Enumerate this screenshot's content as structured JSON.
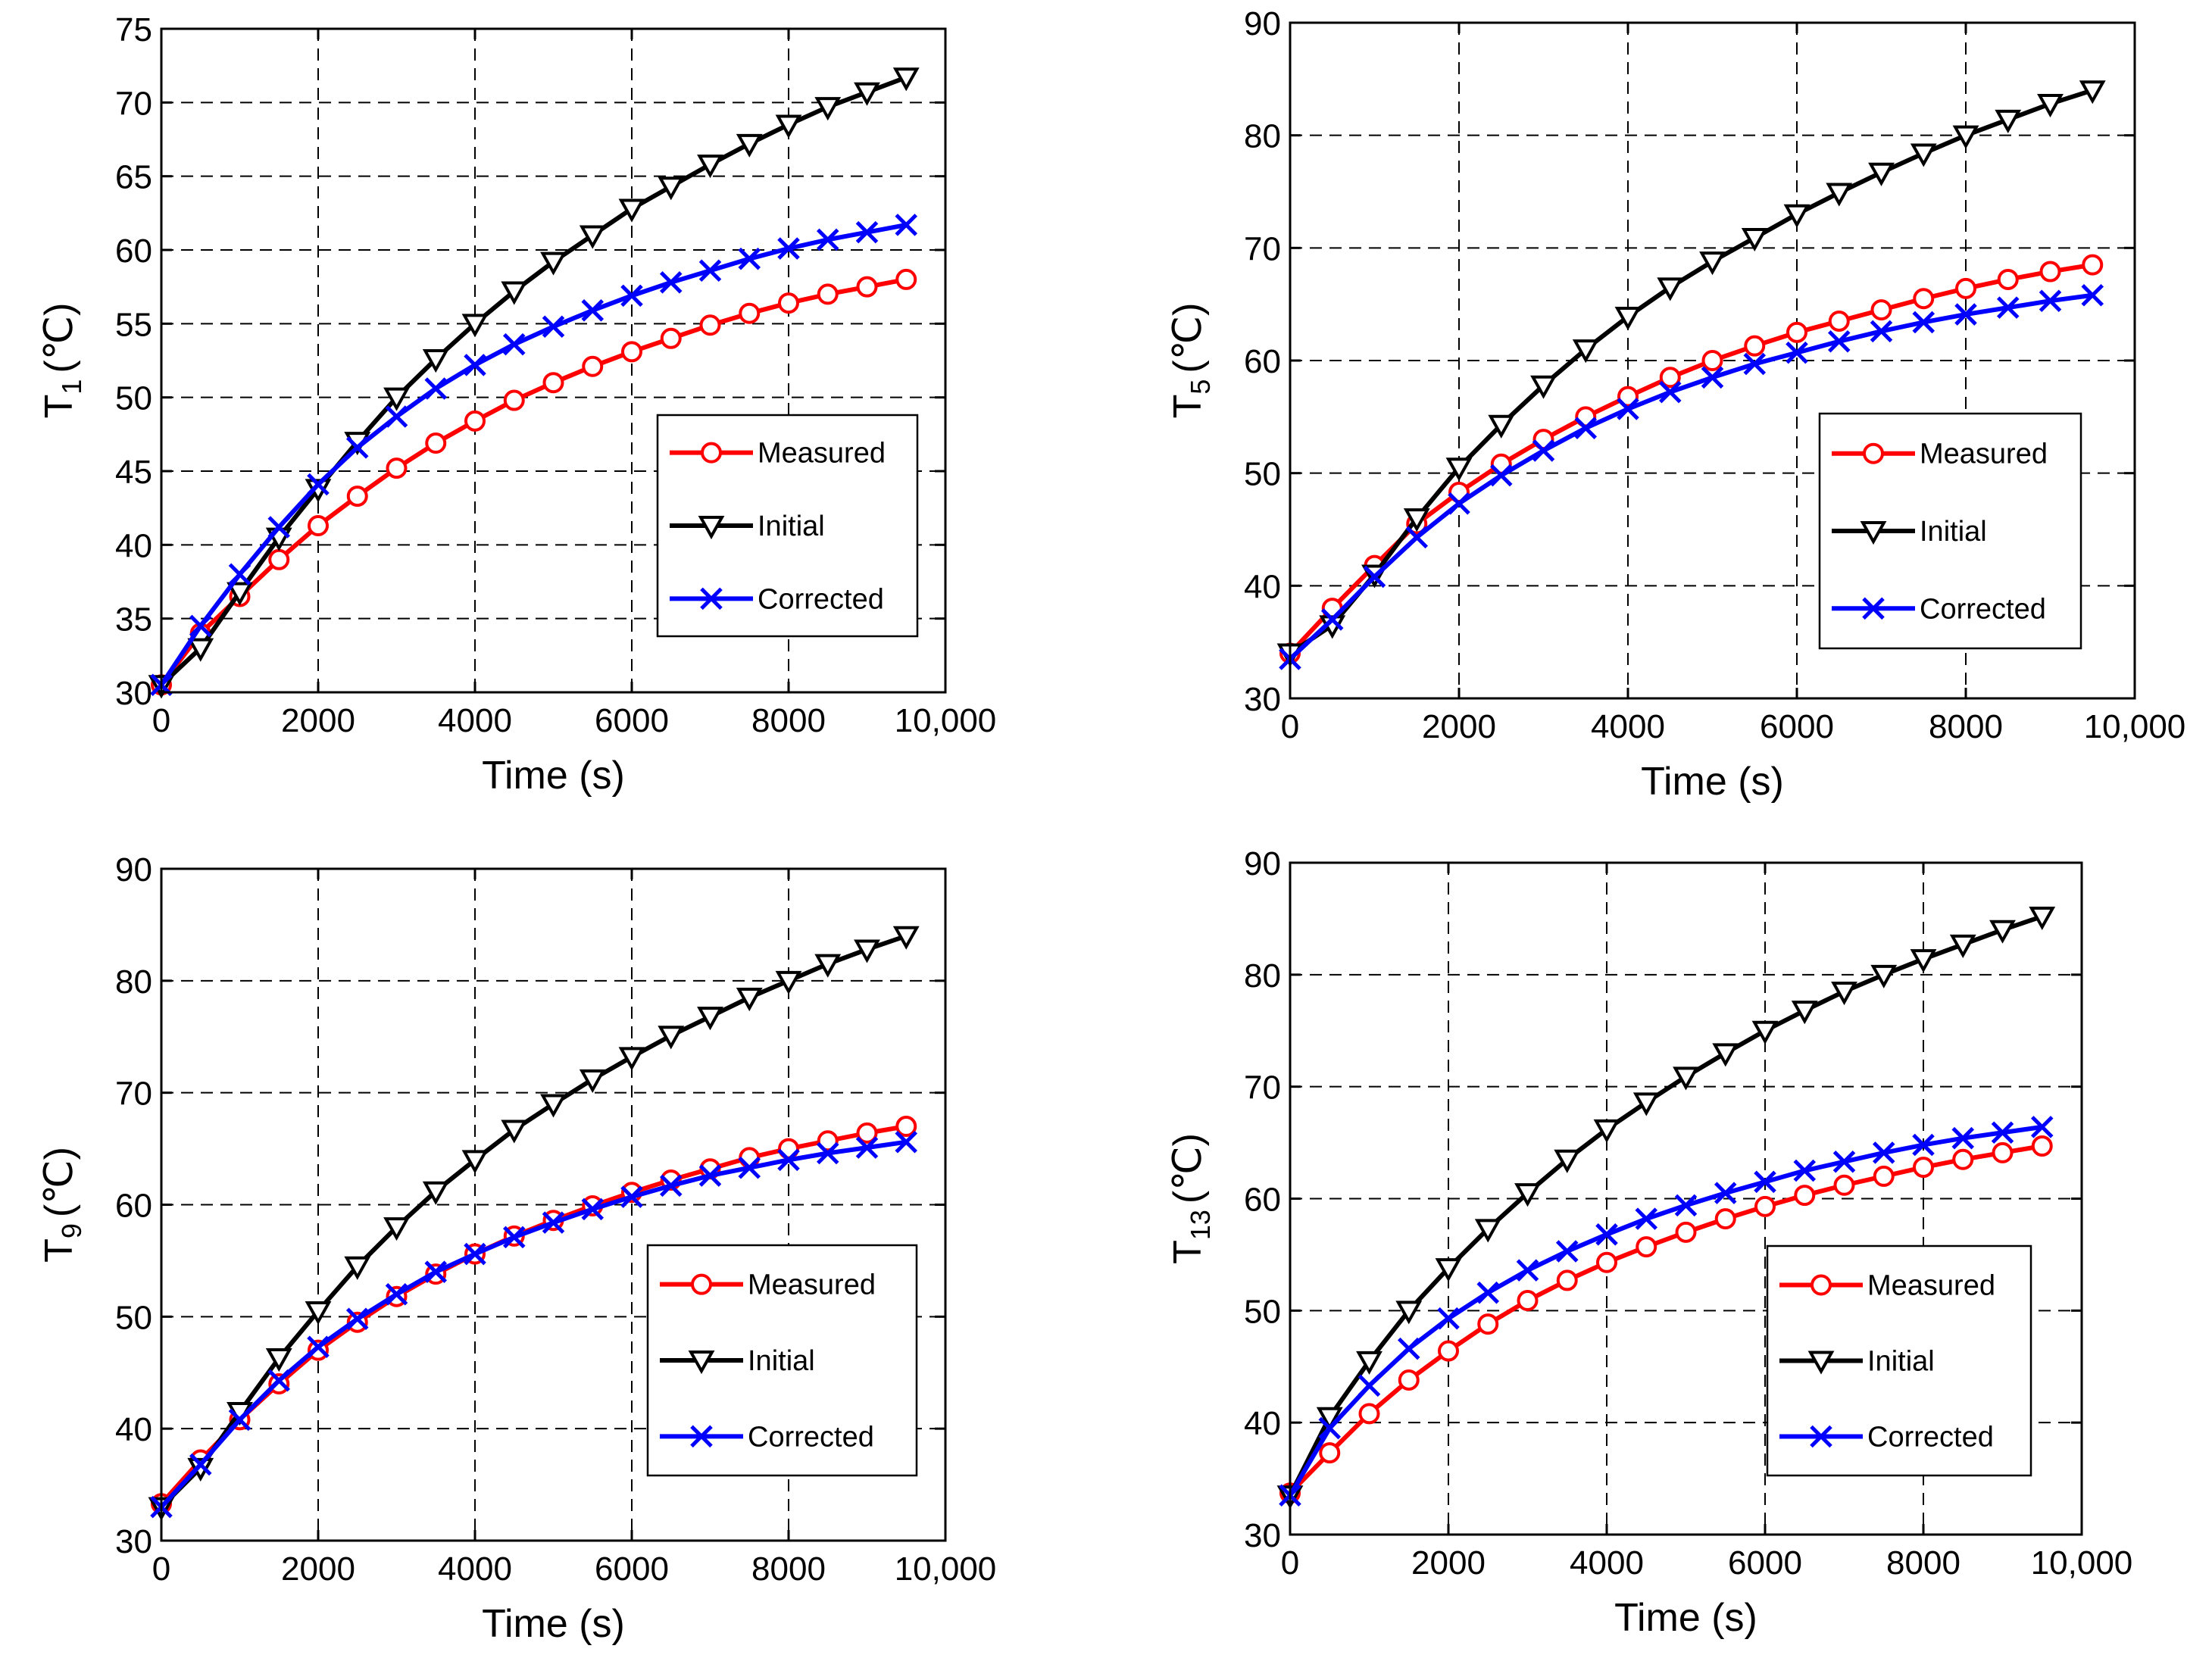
{
  "chart_data": [
    {
      "type": "line",
      "id": "T1",
      "ylabel_main": "T",
      "ylabel_sub": "1",
      "ylabel_unit": "(℃)",
      "xlabel": "Time (s)",
      "xlim": [
        0,
        10000
      ],
      "ylim": [
        30,
        75
      ],
      "xticks": [
        0,
        2000,
        4000,
        6000,
        8000,
        10000
      ],
      "xtick_labels": [
        "0",
        "2000",
        "4000",
        "6000",
        "8000",
        "10,000"
      ],
      "yticks": [
        30,
        35,
        40,
        45,
        50,
        55,
        60,
        65,
        70,
        75
      ],
      "ytick_labels": [
        "30",
        "35",
        "40",
        "45",
        "50",
        "55",
        "60",
        "65",
        "70",
        "75"
      ],
      "legend_position": "center-right",
      "x": [
        0,
        500,
        1000,
        1500,
        2000,
        2500,
        3000,
        3500,
        4000,
        4500,
        5000,
        5500,
        6000,
        6500,
        7000,
        7500,
        8000,
        8500,
        9000,
        9500
      ],
      "series": [
        {
          "name": "Measured",
          "color": "#ff0000",
          "marker": "circle",
          "values": [
            30.5,
            34.0,
            36.5,
            39.0,
            41.3,
            43.3,
            45.2,
            46.9,
            48.4,
            49.8,
            51.0,
            52.1,
            53.1,
            54.0,
            54.9,
            55.7,
            56.4,
            57.0,
            57.5,
            58.0
          ]
        },
        {
          "name": "Initial",
          "color": "#000000",
          "marker": "triangle-down",
          "values": [
            30.5,
            33.0,
            36.8,
            40.5,
            43.8,
            47.0,
            50.0,
            52.6,
            55.0,
            57.2,
            59.2,
            61.0,
            62.8,
            64.3,
            65.8,
            67.2,
            68.5,
            69.7,
            70.7,
            71.7
          ]
        },
        {
          "name": "Corrected",
          "color": "#0000ff",
          "marker": "x",
          "values": [
            30.5,
            34.5,
            38.0,
            41.2,
            44.1,
            46.6,
            48.7,
            50.6,
            52.2,
            53.6,
            54.8,
            55.9,
            56.9,
            57.8,
            58.6,
            59.4,
            60.1,
            60.7,
            61.2,
            61.7
          ]
        }
      ]
    },
    {
      "type": "line",
      "id": "T5",
      "ylabel_main": "T",
      "ylabel_sub": "5",
      "ylabel_unit": "(℃)",
      "xlabel": "Time (s)",
      "xlim": [
        0,
        10000
      ],
      "ylim": [
        30,
        90
      ],
      "xticks": [
        0,
        2000,
        4000,
        6000,
        8000,
        10000
      ],
      "xtick_labels": [
        "0",
        "2000",
        "4000",
        "6000",
        "8000",
        "10,000"
      ],
      "yticks": [
        30,
        40,
        50,
        60,
        70,
        80,
        90
      ],
      "ytick_labels": [
        "30",
        "40",
        "50",
        "60",
        "70",
        "80",
        "90"
      ],
      "legend_position": "center-right",
      "x": [
        0,
        500,
        1000,
        1500,
        2000,
        2500,
        3000,
        3500,
        4000,
        4500,
        5000,
        5500,
        6000,
        6500,
        7000,
        7500,
        8000,
        8500,
        9000,
        9500
      ],
      "series": [
        {
          "name": "Measured",
          "color": "#ff0000",
          "marker": "circle",
          "values": [
            34.0,
            38.0,
            41.8,
            45.5,
            48.3,
            50.8,
            53.0,
            55.0,
            56.8,
            58.5,
            60.0,
            61.3,
            62.5,
            63.5,
            64.5,
            65.5,
            66.4,
            67.2,
            67.9,
            68.5
          ]
        },
        {
          "name": "Initial",
          "color": "#000000",
          "marker": "triangle-down",
          "values": [
            34.0,
            36.5,
            41.0,
            46.0,
            50.5,
            54.3,
            57.8,
            61.0,
            63.9,
            66.5,
            68.8,
            70.9,
            73.0,
            74.9,
            76.7,
            78.4,
            80.0,
            81.4,
            82.8,
            84.0
          ]
        },
        {
          "name": "Corrected",
          "color": "#0000ff",
          "marker": "x",
          "values": [
            33.5,
            37.0,
            40.8,
            44.3,
            47.3,
            49.8,
            52.0,
            54.0,
            55.7,
            57.2,
            58.5,
            59.7,
            60.7,
            61.7,
            62.6,
            63.4,
            64.1,
            64.7,
            65.3,
            65.8
          ]
        }
      ]
    },
    {
      "type": "line",
      "id": "T9",
      "ylabel_main": "T",
      "ylabel_sub": "9",
      "ylabel_unit": "(℃)",
      "xlabel": "Time (s)",
      "xlim": [
        0,
        10000
      ],
      "ylim": [
        30,
        90
      ],
      "xticks": [
        0,
        2000,
        4000,
        6000,
        8000,
        10000
      ],
      "xtick_labels": [
        "0",
        "2000",
        "4000",
        "6000",
        "8000",
        "10,000"
      ],
      "yticks": [
        30,
        40,
        50,
        60,
        70,
        80,
        90
      ],
      "ytick_labels": [
        "30",
        "40",
        "50",
        "60",
        "70",
        "80",
        "90"
      ],
      "legend_position": "lower-right",
      "x": [
        0,
        500,
        1000,
        1500,
        2000,
        2500,
        3000,
        3500,
        4000,
        4500,
        5000,
        5500,
        6000,
        6500,
        7000,
        7500,
        8000,
        8500,
        9000,
        9500
      ],
      "series": [
        {
          "name": "Measured",
          "color": "#ff0000",
          "marker": "circle",
          "values": [
            33.3,
            37.2,
            40.8,
            44.0,
            47.0,
            49.5,
            51.8,
            53.8,
            55.6,
            57.2,
            58.6,
            59.9,
            61.1,
            62.2,
            63.2,
            64.2,
            65.0,
            65.7,
            66.4,
            67.0
          ]
        },
        {
          "name": "Initial",
          "color": "#000000",
          "marker": "triangle-down",
          "values": [
            33.0,
            36.5,
            41.5,
            46.3,
            50.5,
            54.5,
            58.0,
            61.2,
            64.0,
            66.7,
            69.0,
            71.2,
            73.2,
            75.1,
            76.8,
            78.5,
            80.0,
            81.5,
            82.8,
            84.0
          ]
        },
        {
          "name": "Corrected",
          "color": "#0000ff",
          "marker": "x",
          "values": [
            33.0,
            36.8,
            40.8,
            44.3,
            47.3,
            49.8,
            52.0,
            54.0,
            55.6,
            57.1,
            58.4,
            59.6,
            60.7,
            61.7,
            62.6,
            63.3,
            64.0,
            64.6,
            65.1,
            65.6
          ]
        }
      ]
    },
    {
      "type": "line",
      "id": "T13",
      "ylabel_main": "T",
      "ylabel_sub": "13",
      "ylabel_unit": "(℃)",
      "xlabel": "Time (s)",
      "xlim": [
        0,
        10000
      ],
      "ylim": [
        30,
        90
      ],
      "xticks": [
        0,
        2000,
        4000,
        6000,
        8000,
        10000
      ],
      "xtick_labels": [
        "0",
        "2000",
        "4000",
        "6000",
        "8000",
        "10,000"
      ],
      "yticks": [
        30,
        40,
        50,
        60,
        70,
        80,
        90
      ],
      "ytick_labels": [
        "30",
        "40",
        "50",
        "60",
        "70",
        "80",
        "90"
      ],
      "legend_position": "lower-right",
      "x": [
        0,
        500,
        1000,
        1500,
        2000,
        2500,
        3000,
        3500,
        4000,
        4500,
        5000,
        5500,
        6000,
        6500,
        7000,
        7500,
        8000,
        8500,
        9000,
        9500
      ],
      "series": [
        {
          "name": "Measured",
          "color": "#ff0000",
          "marker": "circle",
          "values": [
            33.7,
            37.3,
            40.8,
            43.8,
            46.4,
            48.8,
            50.9,
            52.7,
            54.3,
            55.7,
            57.0,
            58.2,
            59.3,
            60.3,
            61.2,
            62.0,
            62.8,
            63.5,
            64.1,
            64.7
          ]
        },
        {
          "name": "Initial",
          "color": "#000000",
          "marker": "triangle-down",
          "values": [
            33.5,
            40.5,
            45.5,
            50.0,
            53.8,
            57.3,
            60.5,
            63.5,
            66.2,
            68.6,
            70.9,
            73.0,
            75.0,
            76.8,
            78.5,
            80.0,
            81.4,
            82.7,
            84.0,
            85.2
          ]
        },
        {
          "name": "Corrected",
          "color": "#0000ff",
          "marker": "x",
          "values": [
            33.5,
            39.5,
            43.3,
            46.6,
            49.3,
            51.6,
            53.6,
            55.3,
            56.8,
            58.2,
            59.4,
            60.5,
            61.5,
            62.5,
            63.3,
            64.1,
            64.8,
            65.4,
            65.9,
            66.4
          ]
        }
      ]
    }
  ]
}
